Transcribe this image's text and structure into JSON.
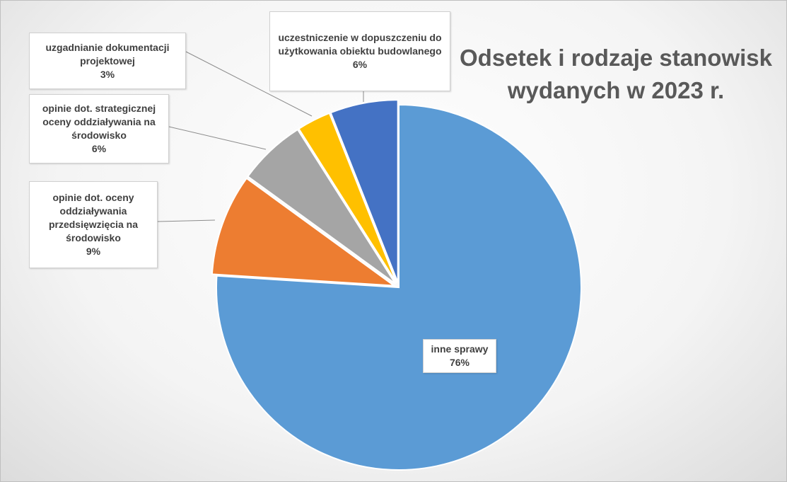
{
  "chart_data": {
    "type": "pie",
    "title": "Odsetek i rodzaje stanowisk wydanych w 2023 r.",
    "categories": [
      "inne sprawy",
      "opinie dot. oceny oddziaływania przedsięwzięcia na środowisko",
      "opinie dot. strategicznej oceny oddziaływania na środowisko",
      "uzgadnianie dokumentacji projektowej",
      "uczestniczenie w dopuszczeniu do użytkowania obiektu budowlanego"
    ],
    "values": [
      76,
      9,
      6,
      3,
      6
    ],
    "value_labels": [
      "76%",
      "9%",
      "6%",
      "3%",
      "6%"
    ],
    "colors": [
      "#5b9bd5",
      "#ed7d31",
      "#a5a5a5",
      "#ffc000",
      "#4472c4"
    ]
  }
}
